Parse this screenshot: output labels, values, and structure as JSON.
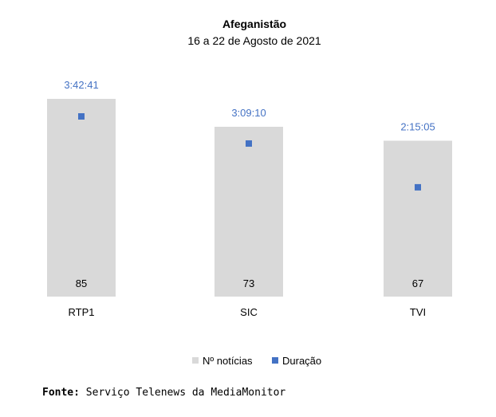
{
  "chart_data": {
    "type": "bar",
    "title": "Afeganistão",
    "subtitle": "16 a 22 de Agosto de 2021",
    "categories": [
      "RTP1",
      "SIC",
      "TVI"
    ],
    "series": [
      {
        "name": "Nº notícias",
        "type": "bar",
        "values": [
          85,
          73,
          67
        ],
        "color": "#d9d9d9"
      },
      {
        "name": "Duração",
        "type": "scatter",
        "values": [
          "3:42:41",
          "3:09:10",
          "2:15:05"
        ],
        "color": "#4472c4"
      }
    ],
    "legend_position": "bottom",
    "grid": false
  },
  "source": {
    "label": "Fonte:",
    "text": "Serviço Telenews da MediaMonitor"
  }
}
